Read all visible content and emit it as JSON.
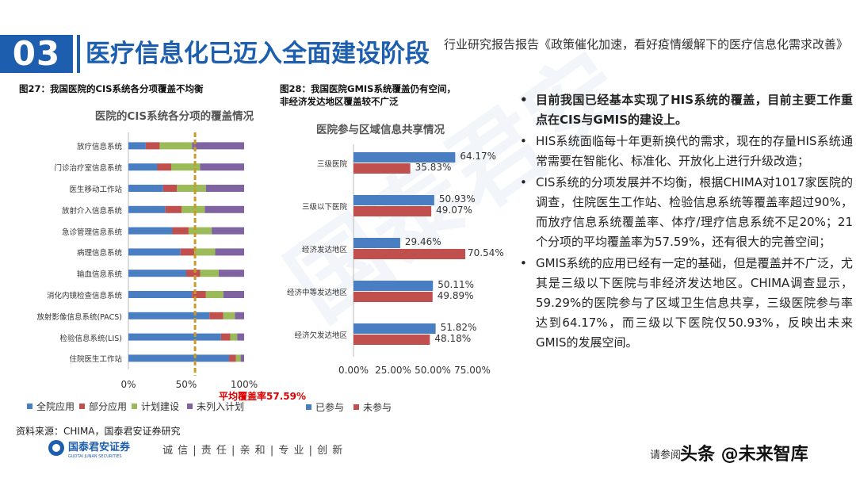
{
  "header": {
    "section_number": "03",
    "title": "医疗信息化已迈入全面建设阶段",
    "report_title": "行业研究报告报告《政策催化加速，看好疫情缓解下的医疗信息化需求改善》"
  },
  "figure27": {
    "caption": "图27：我国医院的CIS系统各分项覆盖不均衡",
    "chart_title": "医院的CIS系统各分项的覆盖情况",
    "average_label": "平均覆盖率57.59%",
    "x_ticks": [
      "0%",
      "50%",
      "100%"
    ]
  },
  "figure28": {
    "caption_line1": "图28：我国医院GMIS系统覆盖仍有空间，",
    "caption_line2": "非经济发达地区覆盖较不广泛",
    "chart_title": "医院参与区域信息共享情况",
    "x_ticks": [
      "0.00%",
      "25.00%",
      "50.00%",
      "75.00%"
    ]
  },
  "chart_data": [
    {
      "type": "bar",
      "stacked": true,
      "orientation": "horizontal",
      "percent_stacked": true,
      "title": "医院的CIS系统各分项的覆盖情况",
      "categories": [
        "放疗信息系统",
        "门诊治疗室信息系统",
        "医生移动工作站",
        "放射介入信息系统",
        "急诊管理信息系统",
        "病理信息系统",
        "输血信息系统",
        "消化内镜检查信息系统",
        "放射影像信息系统(PACS)",
        "检验信息系统(LIS)",
        "住院医生工作站"
      ],
      "series": [
        {
          "name": "全院应用",
          "color": "#4a7ec2",
          "values": [
            15,
            25,
            30,
            32,
            38,
            45,
            50,
            55,
            70,
            80,
            87
          ]
        },
        {
          "name": "部分应用",
          "color": "#c0504d",
          "values": [
            12,
            12,
            12,
            14,
            14,
            12,
            12,
            12,
            12,
            8,
            6
          ]
        },
        {
          "name": "计划建设",
          "color": "#9bbb59",
          "values": [
            28,
            25,
            25,
            20,
            20,
            18,
            16,
            15,
            10,
            6,
            4
          ]
        },
        {
          "name": "未列入计划",
          "color": "#8064a2",
          "values": [
            45,
            38,
            33,
            34,
            28,
            25,
            22,
            18,
            8,
            6,
            3
          ]
        }
      ],
      "xlim": [
        0,
        100
      ],
      "average_line": 57.59,
      "average_color": "#c89a2a",
      "legend": "bottom"
    },
    {
      "type": "bar",
      "orientation": "horizontal",
      "title": "医院参与区域信息共享情况",
      "categories": [
        "三级医院",
        "三级以下医院",
        "经济发达地区",
        "经济中等发达地区",
        "经济欠发达地区"
      ],
      "series": [
        {
          "name": "已参与",
          "color": "#4a7ec2",
          "values": [
            64.17,
            50.93,
            29.46,
            50.11,
            51.82
          ],
          "labels": [
            "64.17%",
            "50.93%",
            "29.46%",
            "50.11%",
            "51.82%"
          ]
        },
        {
          "name": "未参与",
          "color": "#c0504d",
          "values": [
            35.83,
            49.07,
            70.54,
            49.89,
            48.18
          ],
          "labels": [
            "35.83%",
            "49.07%",
            "70.54%",
            "49.89%",
            "48.18%"
          ]
        }
      ],
      "xlim": [
        0,
        75
      ],
      "legend": "bottom"
    }
  ],
  "bullets": [
    "目前我国已经基本实现了HIS系统的覆盖，目前主要工作重点在CIS与GMIS的建设上。",
    "HIS系统面临每十年更新换代的需求，现在的存量HIS系统通常需要在智能化、标准化、开放化上进行升级改造；",
    "CIS系统的分项发展并不均衡，根据CHIMA对1017家医院的调查，住院医生工作站、检验信息系统等覆盖率超过90%，而放疗信息系统覆盖率、体疗/理疗信息系统不足20%；21个分项的平均覆盖率为57.59%，还有很大的完善空间；",
    "GMIS系统的应用已经有一定的基础，但是覆盖并不广泛，尤其是三级以下医院与非经济发达地区。CHIMA调查显示，59.29%的医院参与了区域卫生信息共享，三级医院参与率达到64.17%，而三级以下医院仅50.93%，反映出未来GMIS的发展空间。"
  ],
  "footer": {
    "source": "资料来源：CHIMA，国泰君安证券研究",
    "logo_text": "国泰君安证券",
    "logo_subtext": "GUOTAI JUNAN SECURITIES",
    "slogan": "诚 信 | 责 任 | 亲 和 | 专 业 | 创 新",
    "please_read": "请参阅",
    "watermark": "头条 @未来智库"
  },
  "background_watermark": "国泰君安"
}
